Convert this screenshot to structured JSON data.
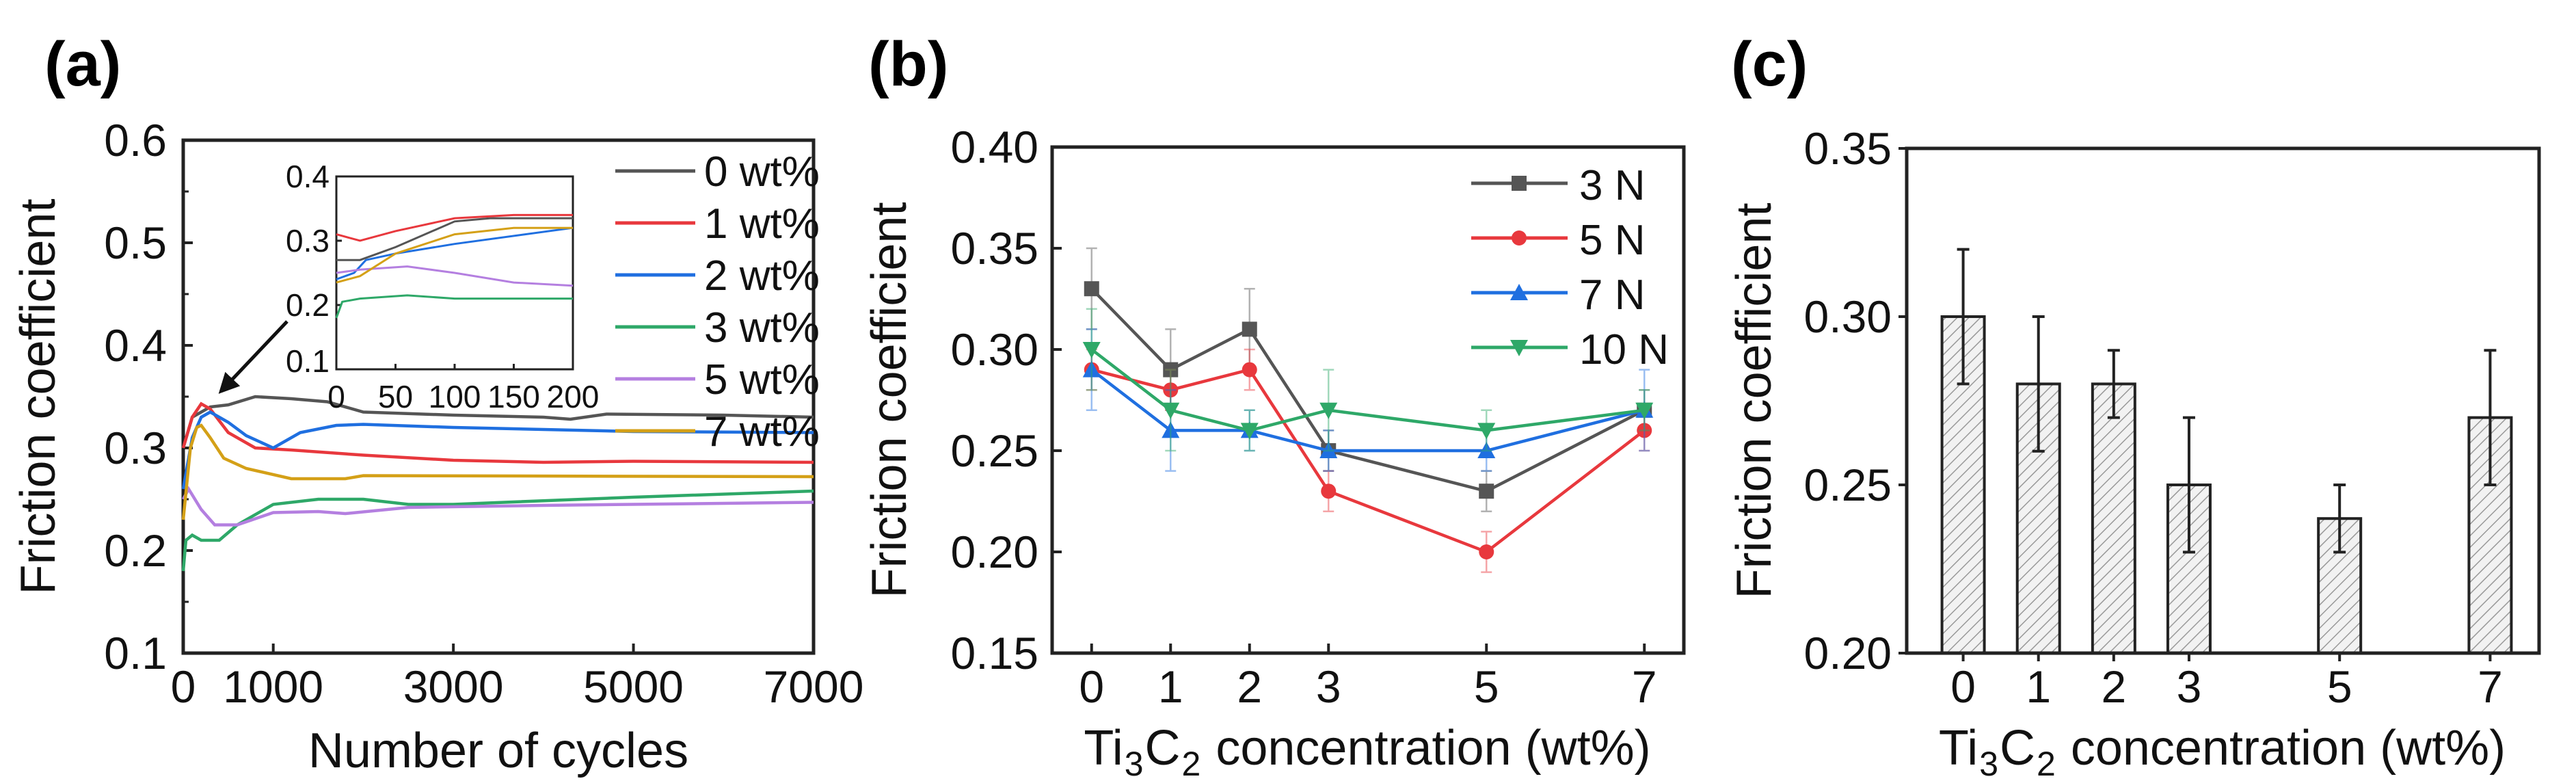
{
  "chart_data": [
    {
      "panel": "(a)",
      "type": "line",
      "xlabel": "Number of cycles",
      "ylabel": "Friction coefficient",
      "xlim": [
        0,
        7000
      ],
      "ylim": [
        0.1,
        0.6
      ],
      "xticks": [
        0,
        1000,
        3000,
        5000,
        7000
      ],
      "yticks": [
        "0.1",
        "0.2",
        "0.3",
        "0.4",
        "0.5",
        "0.6"
      ],
      "legend_position": "top-right",
      "series": [
        {
          "name": "0 wt%",
          "color": "#555555",
          "points": [
            [
              0,
              0.3
            ],
            [
              100,
              0.33
            ],
            [
              300,
              0.34
            ],
            [
              500,
              0.342
            ],
            [
              800,
              0.35
            ],
            [
              1200,
              0.348
            ],
            [
              1600,
              0.345
            ],
            [
              2000,
              0.335
            ],
            [
              3000,
              0.332
            ],
            [
              4000,
              0.33
            ],
            [
              4300,
              0.328
            ],
            [
              4700,
              0.333
            ],
            [
              6000,
              0.332
            ],
            [
              7000,
              0.33
            ]
          ]
        },
        {
          "name": "1 wt%",
          "color": "#e8383d",
          "points": [
            [
              0,
              0.3
            ],
            [
              100,
              0.33
            ],
            [
              200,
              0.343
            ],
            [
              300,
              0.338
            ],
            [
              500,
              0.315
            ],
            [
              800,
              0.3
            ],
            [
              1200,
              0.298
            ],
            [
              2000,
              0.293
            ],
            [
              3000,
              0.288
            ],
            [
              4000,
              0.286
            ],
            [
              5000,
              0.287
            ],
            [
              7000,
              0.286
            ]
          ]
        },
        {
          "name": "2 wt%",
          "color": "#1f6fe0",
          "points": [
            [
              0,
              0.26
            ],
            [
              100,
              0.31
            ],
            [
              200,
              0.33
            ],
            [
              300,
              0.335
            ],
            [
              500,
              0.325
            ],
            [
              700,
              0.312
            ],
            [
              1000,
              0.3
            ],
            [
              1300,
              0.315
            ],
            [
              1700,
              0.322
            ],
            [
              2000,
              0.323
            ],
            [
              3000,
              0.32
            ],
            [
              5000,
              0.316
            ],
            [
              7000,
              0.315
            ]
          ]
        },
        {
          "name": "3 wt%",
          "color": "#2ea868",
          "points": [
            [
              0,
              0.18
            ],
            [
              30,
              0.21
            ],
            [
              100,
              0.215
            ],
            [
              200,
              0.21
            ],
            [
              400,
              0.21
            ],
            [
              600,
              0.225
            ],
            [
              1000,
              0.245
            ],
            [
              1500,
              0.25
            ],
            [
              2000,
              0.25
            ],
            [
              2500,
              0.245
            ],
            [
              3000,
              0.245
            ],
            [
              5000,
              0.252
            ],
            [
              7000,
              0.258
            ]
          ]
        },
        {
          "name": "5 wt%",
          "color": "#b47fe0",
          "points": [
            [
              0,
              0.25
            ],
            [
              60,
              0.26
            ],
            [
              200,
              0.24
            ],
            [
              350,
              0.225
            ],
            [
              600,
              0.225
            ],
            [
              1000,
              0.237
            ],
            [
              1500,
              0.238
            ],
            [
              1800,
              0.236
            ],
            [
              2500,
              0.242
            ],
            [
              4000,
              0.244
            ],
            [
              7000,
              0.247
            ]
          ]
        },
        {
          "name": "7 wt%",
          "color": "#d4a017",
          "points": [
            [
              0,
              0.23
            ],
            [
              80,
              0.3
            ],
            [
              150,
              0.32
            ],
            [
              200,
              0.322
            ],
            [
              300,
              0.31
            ],
            [
              450,
              0.29
            ],
            [
              700,
              0.28
            ],
            [
              1200,
              0.27
            ],
            [
              1800,
              0.27
            ],
            [
              2000,
              0.273
            ],
            [
              7000,
              0.272
            ]
          ]
        }
      ],
      "inset": {
        "xlim": [
          0,
          200
        ],
        "ylim": [
          0.1,
          0.4
        ],
        "xticks": [
          "0",
          "50",
          "100",
          "150",
          "200"
        ],
        "yticks": [
          "0.1",
          "0.2",
          "0.3",
          "0.4"
        ],
        "series": [
          {
            "name": "0 wt%",
            "color": "#555555",
            "points": [
              [
                0,
                0.27
              ],
              [
                20,
                0.27
              ],
              [
                50,
                0.29
              ],
              [
                100,
                0.33
              ],
              [
                130,
                0.335
              ],
              [
                200,
                0.335
              ]
            ]
          },
          {
            "name": "1 wt%",
            "color": "#e8383d",
            "points": [
              [
                0,
                0.31
              ],
              [
                10,
                0.305
              ],
              [
                20,
                0.3
              ],
              [
                50,
                0.315
              ],
              [
                100,
                0.335
              ],
              [
                150,
                0.34
              ],
              [
                200,
                0.34
              ]
            ]
          },
          {
            "name": "2 wt%",
            "color": "#1f6fe0",
            "points": [
              [
                0,
                0.24
              ],
              [
                15,
                0.25
              ],
              [
                25,
                0.27
              ],
              [
                50,
                0.28
              ],
              [
                100,
                0.295
              ],
              [
                200,
                0.32
              ]
            ]
          },
          {
            "name": "3 wt%",
            "color": "#2ea868",
            "points": [
              [
                0,
                0.18
              ],
              [
                5,
                0.205
              ],
              [
                20,
                0.21
              ],
              [
                60,
                0.215
              ],
              [
                100,
                0.21
              ],
              [
                200,
                0.21
              ]
            ]
          },
          {
            "name": "5 wt%",
            "color": "#b47fe0",
            "points": [
              [
                0,
                0.25
              ],
              [
                20,
                0.255
              ],
              [
                60,
                0.26
              ],
              [
                100,
                0.25
              ],
              [
                150,
                0.235
              ],
              [
                200,
                0.23
              ]
            ]
          },
          {
            "name": "7 wt%",
            "color": "#d4a017",
            "points": [
              [
                0,
                0.235
              ],
              [
                20,
                0.245
              ],
              [
                50,
                0.28
              ],
              [
                100,
                0.31
              ],
              [
                150,
                0.32
              ],
              [
                200,
                0.32
              ]
            ]
          }
        ]
      }
    },
    {
      "panel": "(b)",
      "type": "line",
      "xlabel": "Ti3C2 concentration (wt%)",
      "ylabel": "Friction coefficient",
      "x": [
        0,
        1,
        2,
        3,
        5,
        7
      ],
      "xlim": [
        -0.5,
        7.5
      ],
      "ylim": [
        0.15,
        0.4
      ],
      "yticks": [
        "0.15",
        "0.20",
        "0.25",
        "0.30",
        "0.35",
        "0.40"
      ],
      "legend_position": "top-right",
      "series": [
        {
          "name": "3 N",
          "color": "#555555",
          "marker": "square",
          "values": [
            0.33,
            0.29,
            0.31,
            0.25,
            0.23,
            0.27
          ],
          "errors": [
            0.02,
            0.02,
            0.02,
            0.01,
            0.01,
            0.01
          ]
        },
        {
          "name": "5 N",
          "color": "#e8383d",
          "marker": "circle",
          "values": [
            0.29,
            0.28,
            0.29,
            0.23,
            0.2,
            0.26
          ],
          "errors": [
            0.01,
            0.01,
            0.01,
            0.01,
            0.01,
            0.01
          ]
        },
        {
          "name": "7 N",
          "color": "#1f6fe0",
          "marker": "triangle-up",
          "values": [
            0.29,
            0.26,
            0.26,
            0.25,
            0.25,
            0.27
          ],
          "errors": [
            0.02,
            0.02,
            0.01,
            0.01,
            0.01,
            0.02
          ]
        },
        {
          "name": "10 N",
          "color": "#2ea868",
          "marker": "triangle-down",
          "values": [
            0.3,
            0.27,
            0.26,
            0.27,
            0.26,
            0.27
          ],
          "errors": [
            0.02,
            0.02,
            0.01,
            0.02,
            0.01,
            0.01
          ]
        }
      ]
    },
    {
      "panel": "(c)",
      "type": "bar",
      "xlabel": "Ti3C2 concentration (wt%)",
      "ylabel": "Friction coefficient",
      "categories": [
        "0",
        "1",
        "2",
        "3",
        "5",
        "7"
      ],
      "x": [
        0,
        1,
        2,
        3,
        5,
        7
      ],
      "values": [
        0.3,
        0.28,
        0.28,
        0.25,
        0.24,
        0.27
      ],
      "errors": [
        0.02,
        0.02,
        0.01,
        0.02,
        0.01,
        0.02
      ],
      "xlim": [
        -0.75,
        7.65
      ],
      "ylim": [
        0.2,
        0.35
      ],
      "yticks": [
        "0.20",
        "0.25",
        "0.30",
        "0.35"
      ],
      "bar_fill": "hatched-gray"
    }
  ]
}
